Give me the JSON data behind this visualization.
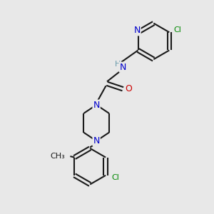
{
  "bg_color": "#e8e8e8",
  "bond_color": "#1a1a1a",
  "N_color": "#0000cc",
  "O_color": "#cc0000",
  "Cl_color": "#008800",
  "H_color": "#6699aa",
  "line_width": 1.5,
  "font_size": 9,
  "small_font": 8,
  "figsize": [
    3.0,
    3.0
  ],
  "dpi": 100,
  "xlim": [
    0,
    10
  ],
  "ylim": [
    0,
    10
  ]
}
